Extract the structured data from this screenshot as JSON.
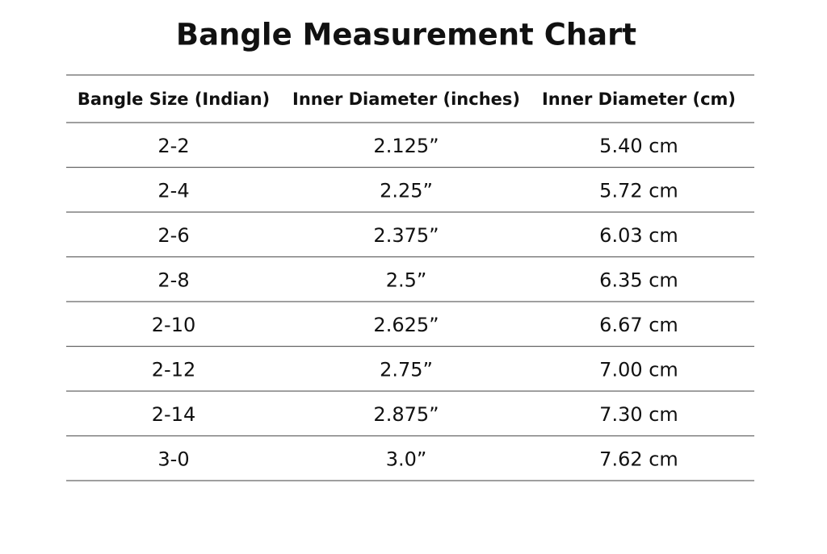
{
  "header": {
    "title": "Bangle Measurement Chart"
  },
  "table": {
    "columns": [
      "Bangle Size (Indian)",
      "Inner Diameter (inches)",
      "Inner Diameter (cm)"
    ],
    "rows": [
      [
        "2-2",
        "2.125”",
        "5.40 cm"
      ],
      [
        "2-4",
        "2.25”",
        "5.72 cm"
      ],
      [
        "2-6",
        "2.375”",
        "6.03 cm"
      ],
      [
        "2-8",
        "2.5”",
        "6.35 cm"
      ],
      [
        "2-10",
        "2.625”",
        "6.67 cm"
      ],
      [
        "2-12",
        "2.75”",
        "7.00 cm"
      ],
      [
        "2-14",
        "2.875”",
        "7.30 cm"
      ],
      [
        "3-0",
        "3.0”",
        "7.62 cm"
      ]
    ]
  }
}
